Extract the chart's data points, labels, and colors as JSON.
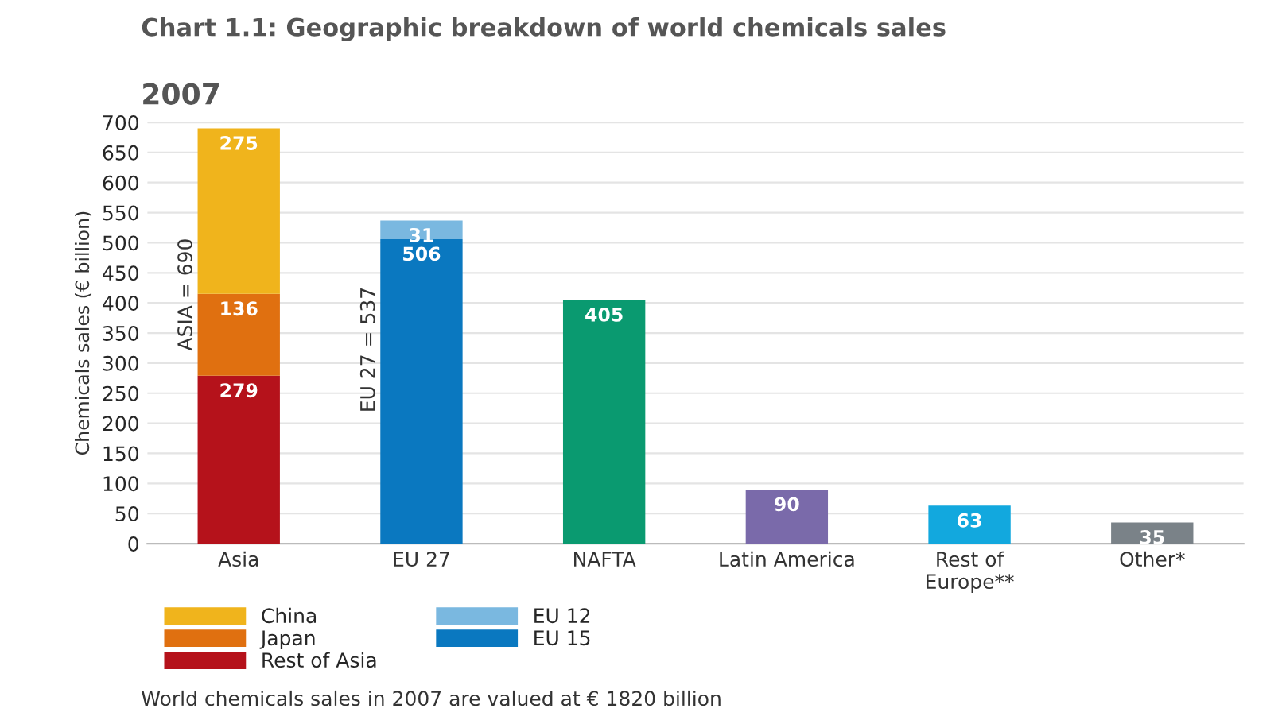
{
  "chart_data": {
    "type": "bar",
    "title": "Chart 1.1: Geographic breakdown of world chemicals sales",
    "subtitle": "2007",
    "ylabel": "Chemicals sales (€ billion)",
    "categories": [
      "Asia",
      "EU 27",
      "NAFTA",
      "Latin America",
      "Rest of\nEurope**",
      "Other*"
    ],
    "stacked": true,
    "series": [
      {
        "name": "Rest of Asia",
        "color": "#b5121b",
        "values": [
          279,
          null,
          null,
          null,
          null,
          null
        ]
      },
      {
        "name": "Japan",
        "color": "#e07010",
        "values": [
          136,
          null,
          null,
          null,
          null,
          null
        ]
      },
      {
        "name": "China",
        "color": "#f0b41c",
        "values": [
          275,
          null,
          null,
          null,
          null,
          null
        ]
      },
      {
        "name": "EU 15",
        "color": "#0a78c0",
        "values": [
          null,
          506,
          null,
          null,
          null,
          null
        ]
      },
      {
        "name": "EU 12",
        "color": "#7ab8e0",
        "values": [
          null,
          31,
          null,
          null,
          null,
          null
        ]
      },
      {
        "colors": [
          null,
          null,
          "#0a9a70",
          "#7a6aaa",
          "#12a8de",
          "#7a8288"
        ],
        "values": [
          null,
          null,
          405,
          90,
          63,
          35
        ]
      }
    ],
    "totals": [
      "ASIA = 690",
      "EU 27 = 537",
      null,
      null,
      null,
      null
    ],
    "data_labels": true,
    "ylim": [
      0,
      700
    ],
    "yticks": [
      0,
      50,
      100,
      150,
      200,
      250,
      300,
      350,
      400,
      450,
      500,
      550,
      600,
      650,
      700
    ],
    "grid": "y",
    "legend": "bottom left",
    "annotations": [
      "World chemicals sales in 2007 are valued at € 1820 billion"
    ]
  }
}
